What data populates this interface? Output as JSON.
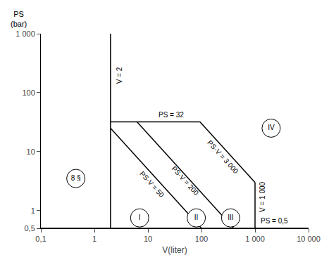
{
  "chart_data": {
    "type": "line",
    "log": true,
    "grid": false,
    "color": "#000000",
    "xlabel": "V(liter)",
    "ylabel": [
      "PS",
      "(bar)"
    ],
    "xlim": [
      0.1,
      10000
    ],
    "ylim": [
      0.5,
      1000
    ],
    "xticks": [
      {
        "value": 0.1,
        "label": "0,1"
      },
      1,
      10,
      100,
      {
        "value": 1000,
        "label": "1 000"
      },
      {
        "value": 10000,
        "label": "10 000"
      }
    ],
    "yticks": [
      {
        "value": 0.5,
        "label": "0,5"
      },
      1,
      10,
      100,
      {
        "value": 1000,
        "label": "1 000"
      }
    ],
    "series": [
      {
        "x": [
          2,
          2
        ],
        "values": [
          0.5,
          1000
        ],
        "label": {
          "text": "V = 2",
          "x": 2.1,
          "y": 120
        }
      },
      {
        "x": [
          0.1,
          10000
        ],
        "values": [
          0.5,
          0.5
        ],
        "label": {
          "text": "PS = 0,5",
          "x": 1200,
          "y": 0.55
        }
      },
      {
        "x": [
          2,
          93.75
        ],
        "values": [
          32,
          32
        ],
        "label": {
          "text": "PS = 32",
          "x": 15,
          "y": 34
        }
      },
      {
        "x": [
          93.75,
          1000
        ],
        "values": [
          32,
          3
        ],
        "label": {
          "text": "PS·V = 3 000",
          "x": 250,
          "y": 8
        }
      },
      {
        "x": [
          1000,
          1000
        ],
        "values": [
          0.5,
          3
        ],
        "label": {
          "text": "V = 1 000",
          "x": 1020,
          "y": 0.8
        }
      },
      {
        "x": [
          2,
          100
        ],
        "values": [
          25,
          0.5
        ],
        "label": {
          "text": "PS·V = 50",
          "x": 12,
          "y": 2.8
        }
      },
      {
        "x": [
          6.25,
          400
        ],
        "values": [
          32,
          0.5
        ],
        "label": {
          "text": "PS·V = 200",
          "x": 50,
          "y": 3.2
        }
      }
    ],
    "annotations": [
      {
        "text": "I",
        "x": 7,
        "y": 0.75,
        "marker": "circle"
      },
      {
        "text": "II",
        "x": 80,
        "y": 0.75,
        "marker": "circle"
      },
      {
        "text": "III",
        "x": 350,
        "y": 0.75,
        "marker": "circle"
      },
      {
        "text": "IV",
        "x": 2000,
        "y": 25,
        "marker": "circle"
      },
      {
        "text": "8 §",
        "x": 0.45,
        "y": 3.5,
        "marker": "circle"
      }
    ]
  }
}
